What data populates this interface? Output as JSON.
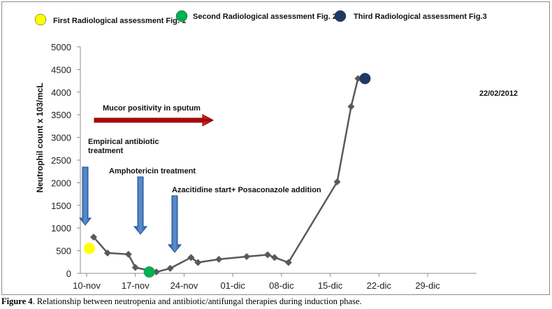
{
  "legend": [
    {
      "label": "First Radiological assessment Fig. 1",
      "color": "#ffff00"
    },
    {
      "label": "Second Radiological assessment Fig. 2",
      "color": "#00b050"
    },
    {
      "label": "Third Radiological assessment Fig.3",
      "color": "#1f3864"
    }
  ],
  "caption": {
    "label": "Figure 4",
    "text": ". Relationship between neutropenia and antibiotic/antifungal therapies during induction phase."
  },
  "chart_data": {
    "type": "line",
    "ylabel": "Neutrophil count x 103/mcL",
    "ylim": [
      0,
      5000
    ],
    "yticks": [
      0,
      500,
      1000,
      1500,
      2000,
      2500,
      3000,
      3500,
      4000,
      4500,
      5000
    ],
    "xticks": [
      "10-nov",
      "17-nov",
      "24-nov",
      "01-dic",
      "08-dic",
      "15-dic",
      "22-dic",
      "29-dic"
    ],
    "x_unit": "days after 10-nov",
    "grid": false,
    "line_color": "#595959",
    "series": [
      {
        "name": "",
        "x": [
          1,
          3,
          6,
          7,
          10,
          12,
          15,
          16,
          19,
          23,
          26,
          27,
          29,
          36,
          38,
          39
        ],
        "y": [
          800,
          450,
          420,
          130,
          30,
          110,
          350,
          240,
          310,
          370,
          410,
          350,
          240,
          2020,
          3680,
          4300
        ]
      }
    ],
    "events": [
      {
        "name": "first-radiological-assessment",
        "x": 0.4,
        "y": 550,
        "color": "#ffff00"
      },
      {
        "name": "second-radiological-assessment",
        "x": 9,
        "y": 30,
        "color": "#00b050"
      },
      {
        "name": "third-radiological-assessment",
        "x": 40,
        "y": 4300,
        "color": "#1f3864"
      }
    ],
    "annotations": {
      "third_date": "22/02/2012",
      "mucor": "Mucor positivity in sputum",
      "empirical_line1": "Empirical antibiotic",
      "empirical_line2": "treatment",
      "amphotericin": "Amphotericin  treatment",
      "azacitidine": "Azacitidine  start+ Posaconazole addition"
    }
  }
}
